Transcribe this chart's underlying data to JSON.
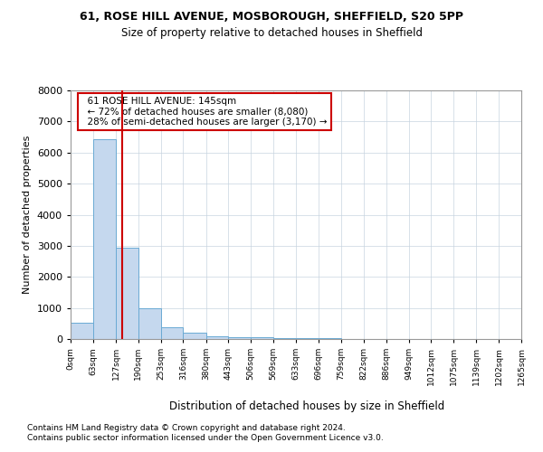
{
  "title1": "61, ROSE HILL AVENUE, MOSBOROUGH, SHEFFIELD, S20 5PP",
  "title2": "Size of property relative to detached houses in Sheffield",
  "xlabel": "Distribution of detached houses by size in Sheffield",
  "ylabel": "Number of detached properties",
  "annotation_line1": "61 ROSE HILL AVENUE: 145sqm",
  "annotation_line2": "← 72% of detached houses are smaller (8,080)",
  "annotation_line3": "28% of semi-detached houses are larger (3,170) →",
  "footer1": "Contains HM Land Registry data © Crown copyright and database right 2024.",
  "footer2": "Contains public sector information licensed under the Open Government Licence v3.0.",
  "property_size": 145,
  "bar_edges": [
    0,
    63,
    127,
    190,
    253,
    316,
    380,
    443,
    506,
    569,
    633,
    696,
    759,
    822,
    886,
    949,
    1012,
    1075,
    1139,
    1202,
    1265
  ],
  "bar_heights": [
    530,
    6430,
    2950,
    980,
    380,
    190,
    100,
    65,
    45,
    30,
    20,
    15,
    12,
    10,
    8,
    6,
    5,
    4,
    3,
    2
  ],
  "bar_color": "#c5d8ee",
  "bar_edge_color": "#6aaad4",
  "vline_color": "#cc0000",
  "vline_x": 145,
  "annotation_box_color": "#cc0000",
  "ylim": [
    0,
    8000
  ],
  "xlim": [
    0,
    1265
  ],
  "background_color": "#ffffff",
  "grid_color": "#c8d4e0"
}
